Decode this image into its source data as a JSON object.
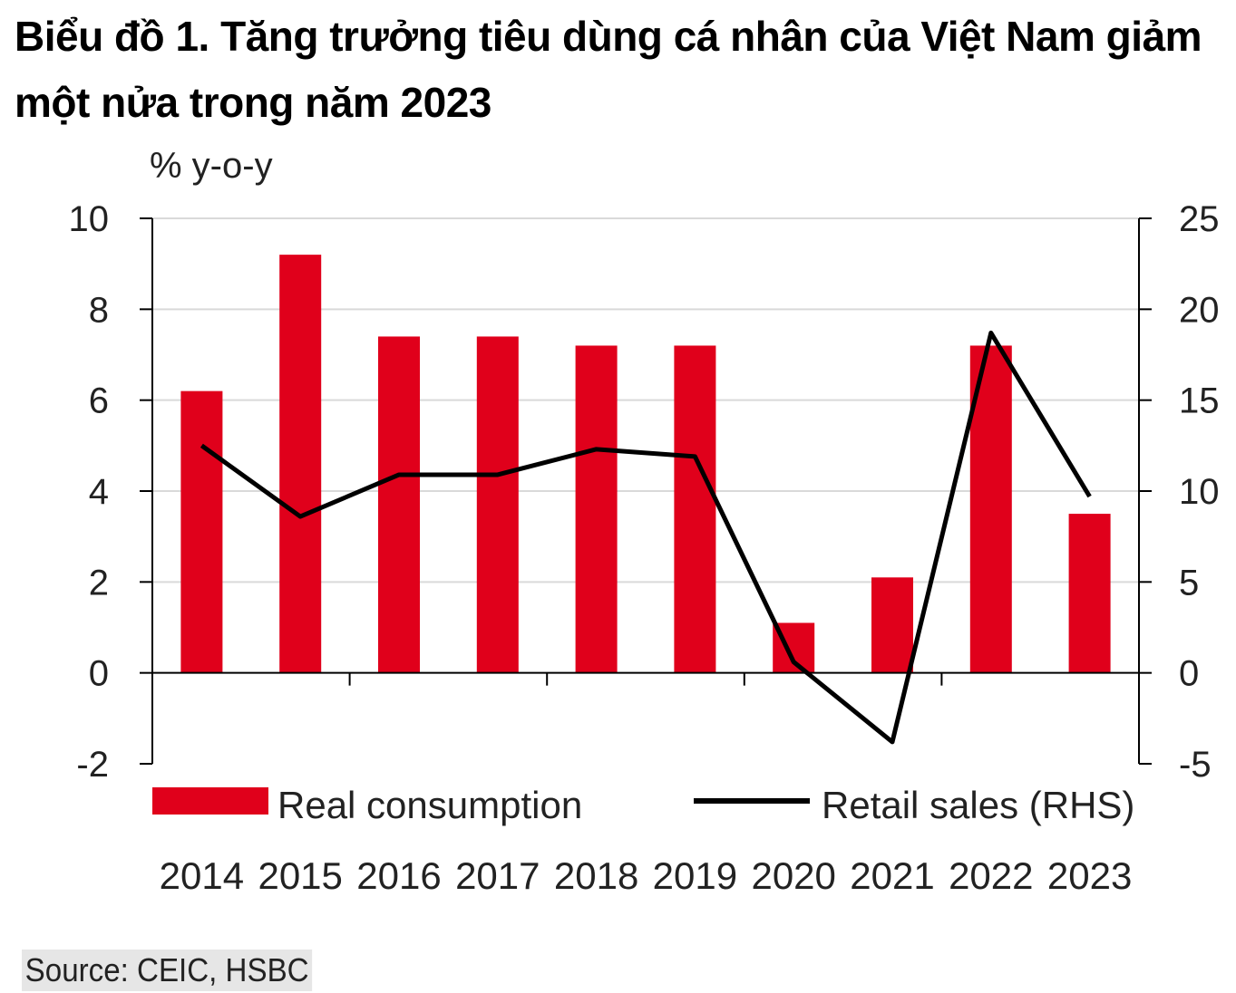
{
  "title": "Biểu đồ 1. Tăng trưởng tiêu dùng cá nhân của Việt Nam giảm một nửa trong năm 2023",
  "source": "Source: CEIC, HSBC",
  "chart_data": {
    "type": "bar",
    "ylabel": "% y-o-y",
    "categories": [
      "2014",
      "2015",
      "2016",
      "2017",
      "2018",
      "2019",
      "2020",
      "2021",
      "2022",
      "2023"
    ],
    "ylim_left": [
      -2,
      10
    ],
    "yticks_left": [
      "10",
      "8",
      "6",
      "4",
      "2",
      "0",
      "-2"
    ],
    "ylim_right": [
      -5,
      25
    ],
    "yticks_right": [
      "25",
      "20",
      "15",
      "10",
      "5",
      "0",
      "-5"
    ],
    "grid": true,
    "legend_position": "bottom",
    "series": [
      {
        "name": "Real consumption",
        "type": "bar",
        "axis": "left",
        "color": "#e0001b",
        "values": [
          6.2,
          9.2,
          7.4,
          7.4,
          7.2,
          7.2,
          1.1,
          2.1,
          7.2,
          3.5
        ]
      },
      {
        "name": "Retail sales (RHS)",
        "type": "line",
        "axis": "right",
        "color": "#000000",
        "values": [
          12.5,
          8.6,
          10.9,
          10.9,
          12.3,
          11.9,
          0.6,
          -3.8,
          18.7,
          9.7
        ]
      }
    ]
  }
}
